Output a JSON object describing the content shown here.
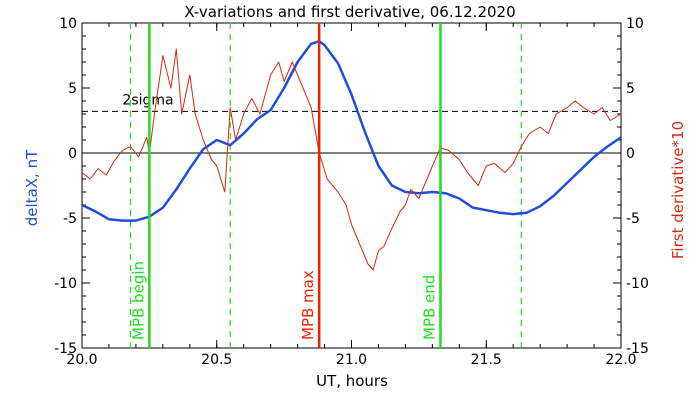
{
  "chart_data": {
    "type": "line",
    "title": "X-variations and first derivative, 06.12.2020",
    "xlabel": "UT, hours",
    "ylabel_left": "deltaX, nT",
    "ylabel_right": "First derivative*10",
    "xlim": [
      20.0,
      22.0
    ],
    "ylim": [
      -15,
      10
    ],
    "x_ticks": [
      20.0,
      20.5,
      21.0,
      21.5,
      22.0
    ],
    "x_tick_labels": [
      "20.0",
      "20.5",
      "21.0",
      "21.5",
      "22.0"
    ],
    "y_ticks": [
      -15,
      -10,
      -5,
      0,
      5,
      10
    ],
    "y_tick_labels": [
      "-15",
      "-10",
      "-5",
      "0",
      "5",
      "10"
    ],
    "threshold": {
      "label": "2sigma",
      "value": 3.2
    },
    "zero_line": 0,
    "colors": {
      "deltaX": "#1f4fd8",
      "derivative": "#d42a10",
      "mpb_edges": "#22dd22",
      "mpb_max": "#ee2200"
    },
    "markers": [
      {
        "label": "MPB begin",
        "x": 20.25,
        "style": "solid",
        "color": "#22dd22"
      },
      {
        "label": "MPB max",
        "x": 20.88,
        "style": "solid",
        "color": "#ee2200"
      },
      {
        "label": "MPB end",
        "x": 21.33,
        "style": "solid",
        "color": "#22dd22"
      }
    ],
    "dashed_markers": [
      20.18,
      20.55,
      21.63
    ],
    "series": [
      {
        "key": "deltaX",
        "axis": "left",
        "x": [
          20.0,
          20.05,
          20.1,
          20.15,
          20.2,
          20.25,
          20.3,
          20.35,
          20.4,
          20.45,
          20.5,
          20.55,
          20.6,
          20.65,
          20.7,
          20.75,
          20.8,
          20.85,
          20.88,
          20.9,
          20.95,
          21.0,
          21.05,
          21.1,
          21.15,
          21.2,
          21.25,
          21.3,
          21.35,
          21.4,
          21.45,
          21.5,
          21.55,
          21.6,
          21.65,
          21.7,
          21.75,
          21.8,
          21.85,
          21.9,
          21.95,
          22.0
        ],
        "y": [
          -4.0,
          -4.5,
          -5.1,
          -5.2,
          -5.2,
          -4.9,
          -4.2,
          -2.8,
          -1.2,
          0.3,
          1.0,
          0.6,
          1.5,
          2.6,
          3.3,
          5.0,
          7.0,
          8.4,
          8.6,
          8.3,
          6.9,
          4.5,
          1.6,
          -1.0,
          -2.5,
          -3.0,
          -3.1,
          -3.0,
          -3.1,
          -3.5,
          -4.2,
          -4.4,
          -4.6,
          -4.7,
          -4.6,
          -4.1,
          -3.3,
          -2.3,
          -1.3,
          -0.3,
          0.5,
          1.2
        ]
      },
      {
        "key": "derivative",
        "axis": "right",
        "x": [
          20.0,
          20.03,
          20.06,
          20.09,
          20.12,
          20.15,
          20.18,
          20.21,
          20.24,
          20.25,
          20.27,
          20.3,
          20.33,
          20.35,
          20.37,
          20.4,
          20.42,
          20.45,
          20.48,
          20.5,
          20.53,
          20.55,
          20.57,
          20.6,
          20.63,
          20.66,
          20.7,
          20.73,
          20.75,
          20.78,
          20.8,
          20.82,
          20.85,
          20.88,
          20.91,
          20.95,
          20.98,
          21.0,
          21.03,
          21.06,
          21.08,
          21.1,
          21.12,
          21.15,
          21.18,
          21.2,
          21.22,
          21.25,
          21.28,
          21.3,
          21.33,
          21.36,
          21.4,
          21.43,
          21.47,
          21.5,
          21.53,
          21.57,
          21.6,
          21.63,
          21.66,
          21.7,
          21.73,
          21.76,
          21.8,
          21.83,
          21.86,
          21.9,
          21.93,
          21.96,
          22.0
        ],
        "y": [
          -1.5,
          -2.0,
          -1.2,
          -1.7,
          -0.6,
          0.2,
          0.5,
          -0.3,
          1.2,
          0.0,
          3.2,
          7.5,
          5.0,
          8.0,
          3.0,
          6.0,
          3.0,
          1.0,
          -0.5,
          -1.0,
          -3.0,
          3.5,
          1.0,
          3.0,
          4.2,
          3.0,
          6.0,
          7.0,
          5.5,
          7.0,
          6.0,
          5.0,
          3.5,
          0.0,
          -2.0,
          -3.0,
          -4.0,
          -5.5,
          -7.0,
          -8.5,
          -9.0,
          -7.5,
          -7.2,
          -5.8,
          -4.5,
          -4.0,
          -2.8,
          -3.5,
          -2.0,
          -1.0,
          0.4,
          0.2,
          -0.5,
          -1.5,
          -2.5,
          -1.0,
          -0.8,
          -1.5,
          -0.8,
          0.5,
          1.5,
          2.0,
          1.5,
          3.0,
          3.5,
          4.0,
          3.5,
          3.0,
          3.5,
          2.5,
          3.0
        ]
      }
    ]
  }
}
